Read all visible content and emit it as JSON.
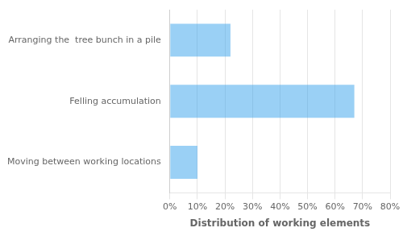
{
  "chart_data": {
    "type": "bar",
    "orientation": "horizontal",
    "categories": [
      "Moving between working locations",
      "Felling accumulation",
      "Arranging the  tree bunch in a pile"
    ],
    "values": [
      0.1,
      0.67,
      0.22
    ],
    "xlabel": "Distribution of working elements",
    "xlim": [
      0,
      0.8
    ],
    "xticks": [
      {
        "value": 0.0,
        "label": "0%"
      },
      {
        "value": 0.1,
        "label": "10%"
      },
      {
        "value": 0.2,
        "label": "20%"
      },
      {
        "value": 0.3,
        "label": "30%"
      },
      {
        "value": 0.4,
        "label": "40%"
      },
      {
        "value": 0.5,
        "label": "50%"
      },
      {
        "value": 0.6,
        "label": "60%"
      },
      {
        "value": 0.7,
        "label": "70%"
      },
      {
        "value": 0.8,
        "label": "80%"
      }
    ],
    "grid": true
  }
}
